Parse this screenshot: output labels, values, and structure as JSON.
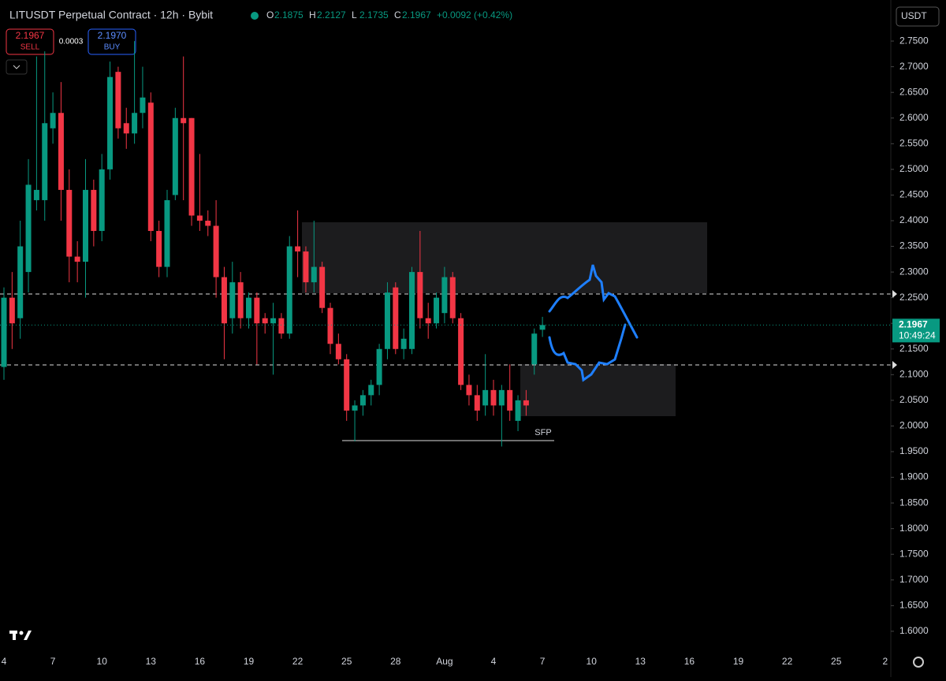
{
  "header": {
    "symbol": "LITUSDT Perpetual Contract · 12h · Bybit",
    "ohlc": [
      {
        "label": "O",
        "value": "2.1875"
      },
      {
        "label": "H",
        "value": "2.2127"
      },
      {
        "label": "L",
        "value": "2.1735"
      },
      {
        "label": "C",
        "value": "2.1967"
      }
    ],
    "change": "+0.0092 (+0.42%)",
    "currency": "USDT"
  },
  "trade": {
    "sell_price": "2.1967",
    "sell": "SELL",
    "spread": "0.0003",
    "buy_price": "2.1970",
    "buy": "BUY"
  },
  "chart_data": {
    "type": "candlestick",
    "up_color": "#089981",
    "down_color": "#f23645",
    "open": [
      2.115,
      2.25,
      2.21,
      2.3,
      2.44,
      2.44,
      2.58,
      2.61,
      2.46,
      2.33,
      2.32,
      2.46,
      2.38,
      2.5,
      2.69,
      2.59,
      2.57,
      2.61,
      2.63,
      2.38,
      2.31,
      2.45,
      2.6,
      2.6,
      2.41,
      2.4,
      2.39,
      2.29,
      2.21,
      2.28,
      2.21,
      2.25,
      2.21,
      2.2,
      2.21,
      2.18,
      2.35,
      2.34,
      2.28,
      2.31,
      2.23,
      2.16,
      2.13,
      2.03,
      2.04,
      2.06,
      2.08,
      2.15,
      2.27,
      2.15,
      2.15,
      2.3,
      2.21,
      2.2,
      2.22,
      2.29,
      2.21,
      2.08,
      2.06,
      2.04,
      2.07,
      2.04,
      2.07,
      2.01,
      2.05,
      2.12,
      2.1875
    ],
    "high": [
      2.27,
      2.3,
      2.4,
      2.52,
      2.72,
      2.73,
      2.65,
      2.67,
      2.5,
      2.36,
      2.52,
      2.48,
      2.53,
      2.71,
      2.7,
      2.62,
      2.75,
      2.7,
      2.65,
      2.4,
      2.46,
      2.62,
      2.72,
      2.6,
      2.53,
      2.42,
      2.44,
      2.31,
      2.32,
      2.3,
      2.26,
      2.26,
      2.22,
      2.24,
      2.22,
      2.37,
      2.42,
      2.35,
      2.4,
      2.32,
      2.24,
      2.18,
      2.14,
      2.05,
      2.07,
      2.09,
      2.16,
      2.28,
      2.28,
      2.19,
      2.31,
      2.38,
      2.24,
      2.26,
      2.31,
      2.3,
      2.22,
      2.1,
      2.08,
      2.14,
      2.09,
      2.08,
      2.12,
      2.06,
      2.07,
      2.19,
      2.2127
    ],
    "low": [
      2.09,
      2.15,
      2.17,
      2.26,
      2.42,
      2.4,
      2.55,
      2.4,
      2.28,
      2.28,
      2.25,
      2.35,
      2.36,
      2.48,
      2.56,
      2.54,
      2.55,
      2.58,
      2.36,
      2.29,
      2.29,
      2.44,
      2.44,
      2.39,
      2.38,
      2.37,
      2.25,
      2.13,
      2.18,
      2.19,
      2.19,
      2.12,
      2.18,
      2.1,
      2.17,
      2.17,
      2.29,
      2.26,
      2.26,
      2.22,
      2.14,
      2.12,
      2.01,
      1.97,
      2.02,
      2.04,
      2.06,
      2.13,
      2.14,
      2.13,
      2.14,
      2.19,
      2.17,
      2.19,
      2.2,
      2.2,
      2.07,
      2.04,
      2.01,
      2.02,
      2.02,
      1.96,
      2.01,
      1.99,
      2.02,
      2.1,
      2.1735
    ],
    "close": [
      2.25,
      2.2,
      2.35,
      2.47,
      2.46,
      2.59,
      2.61,
      2.46,
      2.33,
      2.32,
      2.46,
      2.38,
      2.5,
      2.68,
      2.58,
      2.57,
      2.61,
      2.64,
      2.38,
      2.31,
      2.44,
      2.6,
      2.59,
      2.41,
      2.4,
      2.39,
      2.29,
      2.2,
      2.28,
      2.21,
      2.25,
      2.2,
      2.2,
      2.21,
      2.18,
      2.35,
      2.34,
      2.28,
      2.31,
      2.23,
      2.16,
      2.13,
      2.03,
      2.04,
      2.06,
      2.08,
      2.15,
      2.26,
      2.15,
      2.17,
      2.3,
      2.21,
      2.2,
      2.25,
      2.29,
      2.21,
      2.08,
      2.06,
      2.03,
      2.07,
      2.04,
      2.07,
      2.03,
      2.05,
      2.04,
      2.18,
      2.1967
    ],
    "xticks": [
      "4",
      "7",
      "10",
      "13",
      "16",
      "19",
      "22",
      "25",
      "28",
      "Aug",
      "4",
      "7",
      "10",
      "13",
      "16",
      "19",
      "22",
      "25",
      "2"
    ],
    "ylim": [
      1.563,
      2.83
    ],
    "yticks": [
      {
        "value": 2.75,
        "label": "2.7500"
      },
      {
        "value": 2.7,
        "label": "2.7000"
      },
      {
        "value": 2.65,
        "label": "2.6500"
      },
      {
        "value": 2.6,
        "label": "2.6000"
      },
      {
        "value": 2.55,
        "label": "2.5500"
      },
      {
        "value": 2.5,
        "label": "2.5000"
      },
      {
        "value": 2.45,
        "label": "2.4500"
      },
      {
        "value": 2.4,
        "label": "2.4000"
      },
      {
        "value": 2.35,
        "label": "2.3500"
      },
      {
        "value": 2.3,
        "label": "2.3000"
      },
      {
        "value": 2.25,
        "label": "2.2500"
      },
      {
        "value": 2.2,
        "label": "2.2000"
      },
      {
        "value": 2.15,
        "label": "2.1500"
      },
      {
        "value": 2.1,
        "label": "2.1000"
      },
      {
        "value": 2.05,
        "label": "2.0500"
      },
      {
        "value": 2.0,
        "label": "2.0000"
      },
      {
        "value": 1.95,
        "label": "1.9500"
      },
      {
        "value": 1.9,
        "label": "1.9000"
      },
      {
        "value": 1.85,
        "label": "1.8500"
      },
      {
        "value": 1.8,
        "label": "1.8000"
      },
      {
        "value": 1.75,
        "label": "1.7500"
      },
      {
        "value": 1.7,
        "label": "1.7000"
      },
      {
        "value": 1.65,
        "label": "1.6500"
      },
      {
        "value": 1.6,
        "label": "1.6000"
      }
    ],
    "last_price": {
      "value": 2.1967,
      "label": "2.1967"
    },
    "countdown": "10:49:24",
    "annotation": "SFP"
  }
}
